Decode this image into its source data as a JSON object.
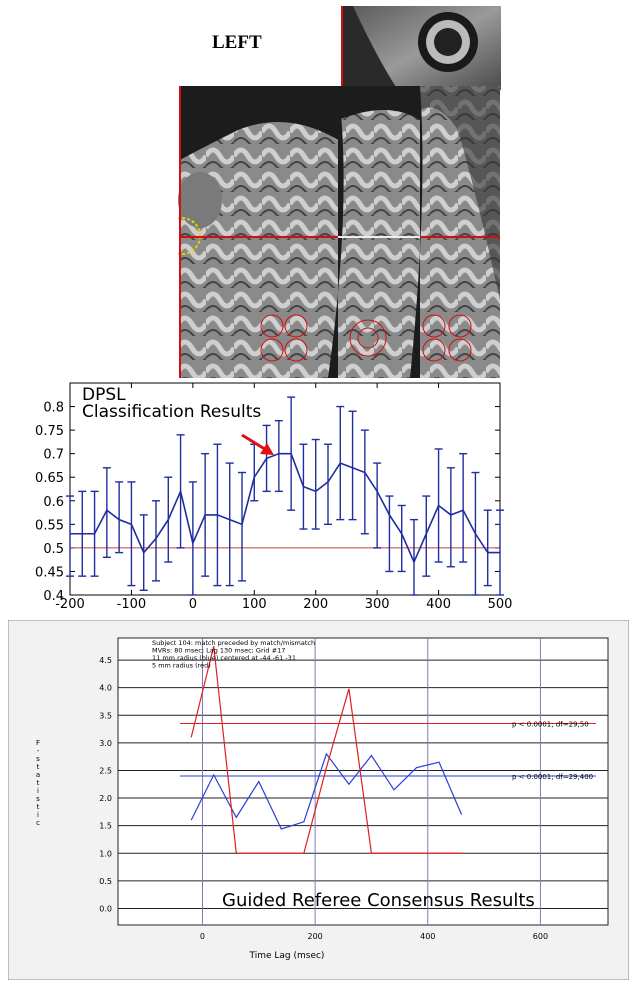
{
  "figure_label": "LEFT",
  "chart_data": [
    {
      "type": "line",
      "title": "DPSL\nClassification Results",
      "xlim": [
        -200,
        500
      ],
      "ylim": [
        0.4,
        0.85
      ],
      "xticks": [
        -200,
        -100,
        0,
        100,
        200,
        300,
        400,
        500
      ],
      "yticks": [
        0.4,
        0.45,
        0.5,
        0.55,
        0.6,
        0.65,
        0.7,
        0.75,
        0.8
      ],
      "reference_line": 0.5,
      "series": [
        {
          "x": [
            -200,
            -180,
            -160,
            -140,
            -120,
            -100,
            -80,
            -60,
            -40,
            -20,
            0,
            20,
            40,
            60,
            80,
            100,
            120,
            140,
            160,
            180,
            200,
            220,
            240,
            260,
            280,
            300,
            320,
            340,
            360,
            380,
            400,
            420,
            440,
            460,
            480,
            500
          ],
          "y": [
            0.53,
            0.53,
            0.53,
            0.58,
            0.56,
            0.55,
            0.49,
            0.52,
            0.56,
            0.62,
            0.51,
            0.57,
            0.57,
            0.56,
            0.55,
            0.65,
            0.69,
            0.7,
            0.7,
            0.63,
            0.62,
            0.64,
            0.68,
            0.67,
            0.66,
            0.62,
            0.57,
            0.53,
            0.47,
            0.53,
            0.59,
            0.57,
            0.58,
            0.53,
            0.49,
            0.49
          ],
          "err_low": [
            0.44,
            0.44,
            0.44,
            0.48,
            0.49,
            0.42,
            0.41,
            0.43,
            0.47,
            0.5,
            0.4,
            0.44,
            0.42,
            0.42,
            0.43,
            0.6,
            0.62,
            0.62,
            0.58,
            0.54,
            0.54,
            0.55,
            0.56,
            0.56,
            0.53,
            0.5,
            0.45,
            0.45,
            0.4,
            0.44,
            0.47,
            0.46,
            0.47,
            0.4,
            0.42,
            0.4
          ],
          "err_high": [
            0.61,
            0.62,
            0.62,
            0.67,
            0.64,
            0.64,
            0.57,
            0.6,
            0.65,
            0.74,
            0.64,
            0.7,
            0.72,
            0.68,
            0.66,
            0.72,
            0.76,
            0.77,
            0.82,
            0.72,
            0.73,
            0.72,
            0.8,
            0.79,
            0.75,
            0.68,
            0.61,
            0.59,
            0.56,
            0.61,
            0.71,
            0.67,
            0.7,
            0.66,
            0.58,
            0.58
          ]
        }
      ]
    },
    {
      "type": "line",
      "title": "Guided Referee Consensus Results",
      "annotation_lines": [
        "Subject 104: match preceded by match/mismatch",
        "MVRs: 80 msec; Lag 130 msec; Grid #17",
        "11 mm radius (blue) centered at -44 -61 -31",
        "5 mm radius (red)"
      ],
      "xlabel": "Time Lag (msec)",
      "ylabel": "F-statistic",
      "xlim": [
        -150,
        720
      ],
      "ylim": [
        -0.3,
        4.9
      ],
      "xticks": [
        0,
        200,
        400,
        600
      ],
      "yticks": [
        0.0,
        0.5,
        1.0,
        1.5,
        2.0,
        2.5,
        3.0,
        3.5,
        4.0,
        4.5
      ],
      "thresholds": [
        {
          "value": 3.35,
          "color": "#e02020",
          "label": "p < 0.0001; df=29,50"
        },
        {
          "value": 2.4,
          "color": "#2a3dd8",
          "label": "p < 0.0001; df=29,400"
        }
      ],
      "series": [
        {
          "color": "#2a3dd8",
          "x": [
            -20,
            20,
            60,
            100,
            140,
            180,
            220,
            260,
            300,
            340,
            380,
            420,
            460
          ],
          "y": [
            1.6,
            2.42,
            1.65,
            2.3,
            1.44,
            1.57,
            2.8,
            2.25,
            2.77,
            2.15,
            2.55,
            2.65,
            1.7
          ]
        },
        {
          "color": "#e02020",
          "x": [
            -20,
            20,
            60,
            100,
            140,
            180,
            220,
            260,
            300,
            340,
            380,
            420,
            460
          ],
          "y": [
            3.1,
            4.75,
            1.0,
            1.0,
            1.0,
            1.0,
            2.55,
            3.98,
            1.0,
            1.0,
            1.0,
            1.0,
            1.0
          ]
        }
      ]
    }
  ]
}
